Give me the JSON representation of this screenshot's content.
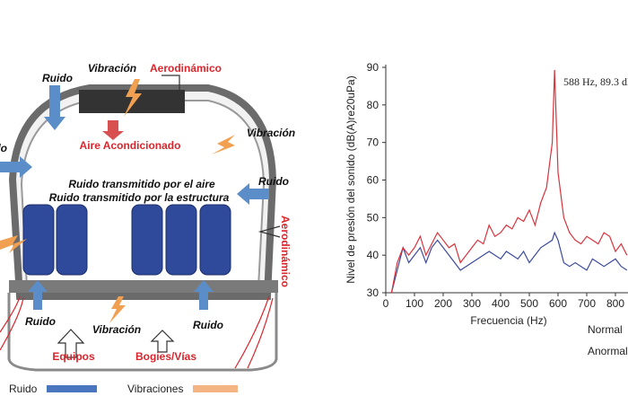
{
  "diagram": {
    "labels": [
      "Vibración",
      "Aerodinámico",
      "Ruido",
      "Aire Acondicionado",
      "Ruido",
      "Vibración",
      "Ruido transmitido por el aire",
      "Ruido transmitido por la estructura",
      "Ruido",
      "Aerodinámico",
      "Ruido",
      "Vibración",
      "Ruido",
      "Equipos",
      "Bogies/Vías"
    ],
    "legend": [
      "Ruido",
      "Vibraciones"
    ]
  },
  "chart_data": {
    "type": "line",
    "annotation": "588 Hz, 89.3 dB",
    "x_label": "Frecuencia (Hz)",
    "y_label": "Nivel de presión del sonido (dB(A)re20uPa)",
    "x": [
      20,
      40,
      60,
      80,
      100,
      120,
      140,
      160,
      180,
      200,
      220,
      240,
      260,
      280,
      300,
      320,
      340,
      360,
      380,
      400,
      420,
      440,
      460,
      480,
      500,
      520,
      540,
      560,
      580,
      588,
      600,
      620,
      640,
      660,
      680,
      700,
      720,
      740,
      760,
      780,
      800,
      820,
      840
    ],
    "series": [
      {
        "name": "Normal",
        "color": "#3b4a9e",
        "values": [
          30,
          36,
          42,
          38,
          40,
          42,
          38,
          42,
          44,
          42,
          40,
          38,
          36,
          37,
          38,
          39,
          40,
          41,
          40,
          39,
          41,
          40,
          39,
          41,
          38,
          40,
          42,
          43,
          44,
          46,
          44,
          38,
          37,
          38,
          37,
          36,
          39,
          38,
          37,
          38,
          39,
          37,
          36
        ]
      },
      {
        "name": "Anormal",
        "color": "#d8343c",
        "values": [
          30,
          38,
          42,
          40,
          42,
          45,
          40,
          43,
          46,
          44,
          42,
          43,
          38,
          40,
          42,
          44,
          43,
          48,
          45,
          46,
          48,
          47,
          50,
          49,
          52,
          48,
          54,
          58,
          70,
          89.3,
          62,
          50,
          46,
          44,
          43,
          45,
          44,
          43,
          46,
          45,
          41,
          43,
          40
        ]
      }
    ],
    "xlim": [
      0,
      850
    ],
    "ylim": [
      30,
      90
    ],
    "xticks": [
      0,
      100,
      200,
      300,
      400,
      500,
      600,
      700,
      800
    ],
    "yticks": [
      30,
      40,
      50,
      60,
      70,
      80,
      90
    ]
  }
}
